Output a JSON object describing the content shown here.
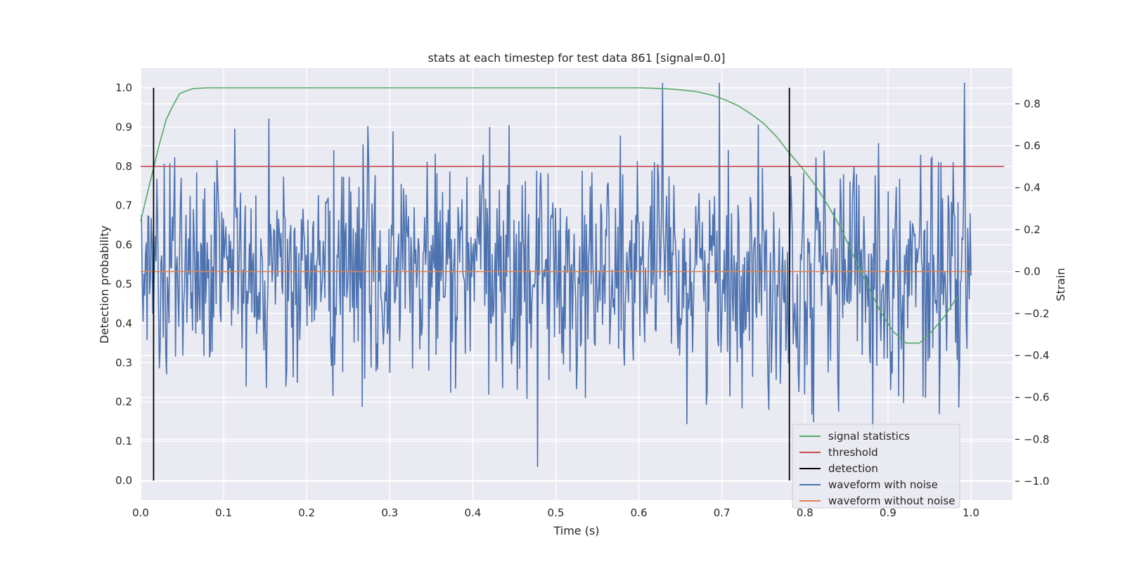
{
  "chart_data": {
    "type": "line",
    "title": "stats at each timestep for test data 861 [signal=0.0]",
    "xlabel": "Time (s)",
    "ylabel": "Detection probability",
    "y2label": "Strain",
    "xlim": [
      0.0,
      1.05
    ],
    "ylim": [
      -0.05,
      1.05
    ],
    "y2lim": [
      -1.09,
      0.97
    ],
    "xticks": [
      "0.0",
      "0.1",
      "0.2",
      "0.3",
      "0.4",
      "0.5",
      "0.6",
      "0.7",
      "0.8",
      "0.9",
      "1.0"
    ],
    "yticks": [
      "0.0",
      "0.1",
      "0.2",
      "0.3",
      "0.4",
      "0.5",
      "0.6",
      "0.7",
      "0.8",
      "0.9",
      "1.0"
    ],
    "y2ticks": [
      "−1.0",
      "−0.8",
      "−0.6",
      "−0.4",
      "−0.2",
      "0.0",
      "0.2",
      "0.4",
      "0.6",
      "0.8"
    ],
    "grid": true,
    "legend_position": "lower-right",
    "series": [
      {
        "name": "signal statistics",
        "color": "#55a868",
        "axis": "left",
        "x": [
          0.0,
          0.008,
          0.016,
          0.023,
          0.031,
          0.039,
          0.047,
          0.055,
          0.063,
          0.08,
          0.1,
          0.15,
          0.2,
          0.3,
          0.4,
          0.5,
          0.6,
          0.63,
          0.65,
          0.67,
          0.69,
          0.703,
          0.719,
          0.734,
          0.75,
          0.766,
          0.781,
          0.797,
          0.813,
          0.828,
          0.844,
          0.859,
          0.875,
          0.891,
          0.906,
          0.922,
          0.938,
          0.953,
          0.969,
          0.984
        ],
        "y": [
          0.66,
          0.73,
          0.8,
          0.86,
          0.92,
          0.955,
          0.985,
          0.992,
          0.998,
          1.0,
          1.0,
          1.0,
          1.0,
          1.0,
          1.0,
          1.0,
          1.0,
          0.998,
          0.995,
          0.99,
          0.98,
          0.97,
          0.955,
          0.935,
          0.91,
          0.875,
          0.835,
          0.795,
          0.75,
          0.7,
          0.64,
          0.57,
          0.5,
          0.43,
          0.38,
          0.35,
          0.35,
          0.38,
          0.42,
          0.47
        ]
      },
      {
        "name": "threshold",
        "color": "#c44e52",
        "axis": "left",
        "x": [
          0.0,
          1.04
        ],
        "y": [
          0.8,
          0.8
        ]
      },
      {
        "name": "detection",
        "color": "#000000",
        "axis": "left",
        "segments": [
          {
            "x": 0.0156,
            "y": [
              0.0,
              1.0
            ]
          },
          {
            "x": 0.7813,
            "y": [
              0.0,
              1.0
            ]
          }
        ]
      },
      {
        "name": "waveform with noise",
        "color": "#4c72b0",
        "axis": "right",
        "x_range": [
          0.0,
          1.0
        ],
        "n_points": 1024,
        "summary": "noise-dominated strain, mostly between -0.6 and 0.7",
        "ymin": -1.0,
        "ymax": 0.9
      },
      {
        "name": "waveform without noise",
        "color": "#dd8452",
        "axis": "right",
        "x": [
          0.0,
          1.0
        ],
        "y": [
          0.0,
          0.0
        ]
      }
    ]
  }
}
